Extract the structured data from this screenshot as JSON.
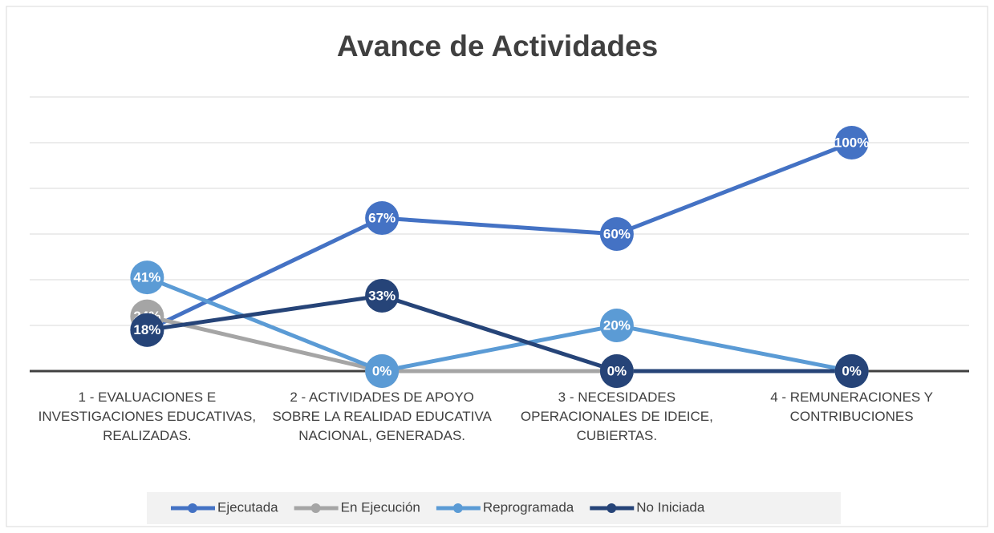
{
  "chart_data": {
    "type": "line",
    "title": "Avance de Actividades",
    "categories": [
      "1 - EVALUACIONES E INVESTIGACIONES EDUCATIVAS, REALIZADAS.",
      "2 - ACTIVIDADES DE APOYO SOBRE LA REALIDAD EDUCATIVA NACIONAL, GENERADAS.",
      "3 - NECESIDADES OPERACIONALES DE IDEICE, CUBIERTAS.",
      "4 - REMUNERACIONES Y CONTRIBUCIONES"
    ],
    "series": [
      {
        "name": "Ejecutada",
        "color": "#4472c4",
        "values": [
          18,
          67,
          60,
          100
        ],
        "value_labels": [
          "18%",
          "67%",
          "60%",
          "100%"
        ]
      },
      {
        "name": "En Ejecución",
        "color": "#a5a5a5",
        "values": [
          24,
          0,
          0,
          0
        ],
        "value_labels": [
          "24%",
          "0%",
          "0%",
          "0%"
        ]
      },
      {
        "name": "Reprogramada",
        "color": "#5b9bd5",
        "values": [
          41,
          0,
          20,
          0
        ],
        "value_labels": [
          "41%",
          "0%",
          "20%",
          "0%"
        ]
      },
      {
        "name": "No Iniciada",
        "color": "#264478",
        "values": [
          18,
          33,
          0,
          0
        ],
        "value_labels": [
          "18%",
          "33%",
          "0%",
          "0%"
        ]
      }
    ],
    "ylim": [
      0,
      120
    ],
    "yticks": [
      0,
      20,
      40,
      60,
      80,
      100,
      120
    ],
    "grid": true,
    "legend": "bottom"
  }
}
